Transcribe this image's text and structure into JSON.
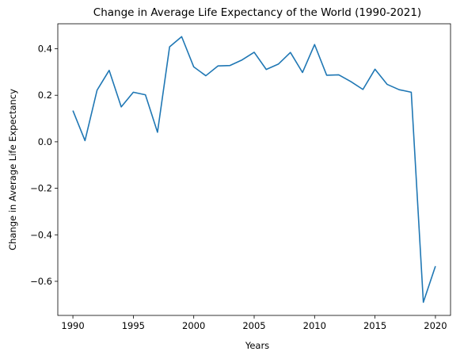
{
  "chart_data": {
    "type": "line",
    "title": "Change in Average Life Expectancy of the World (1990-2021)",
    "xlabel": "Years",
    "ylabel": "Change in Average Life Expectancy",
    "xlim": [
      1988.75,
      2021.25
    ],
    "ylim": [
      -0.7466,
      0.5074
    ],
    "x_ticks": [
      1990,
      1995,
      2000,
      2005,
      2010,
      2015,
      2020
    ],
    "y_ticks": [
      -0.6,
      -0.4,
      -0.2,
      0.0,
      0.2,
      0.4
    ],
    "y_tick_labels": [
      "−0.6",
      "−0.4",
      "−0.2",
      "0.0",
      "0.2",
      "0.4"
    ],
    "grid": false,
    "series": [
      {
        "color": "#1f77b4",
        "x": [
          1990,
          1991,
          1992,
          1993,
          1994,
          1995,
          1996,
          1997,
          1998,
          1999,
          2000,
          2001,
          2002,
          2003,
          2004,
          2005,
          2006,
          2007,
          2008,
          2009,
          2010,
          2011,
          2012,
          2013,
          2014,
          2015,
          2016,
          2017,
          2018,
          2019,
          2020
        ],
        "y": [
          0.134,
          0.005,
          0.222,
          0.307,
          0.15,
          0.213,
          0.202,
          0.041,
          0.408,
          0.452,
          0.322,
          0.284,
          0.326,
          0.328,
          0.352,
          0.385,
          0.311,
          0.334,
          0.384,
          0.298,
          0.418,
          0.286,
          0.288,
          0.259,
          0.225,
          0.312,
          0.247,
          0.224,
          0.213,
          -0.69,
          -0.535
        ]
      }
    ]
  }
}
